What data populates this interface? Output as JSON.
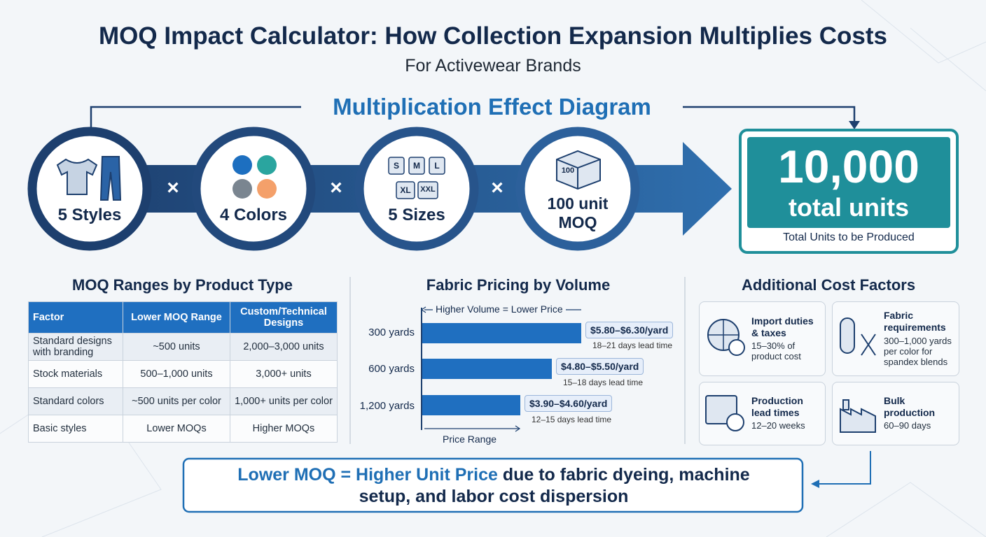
{
  "header": {
    "title": "MOQ Impact Calculator: How Collection Expansion Multiplies Costs",
    "subtitle": "For Activewear Brands"
  },
  "diagram": {
    "title": "Multiplication Effect Diagram",
    "operator": "×",
    "factors": [
      {
        "label": "5 Styles"
      },
      {
        "label": "4 Colors"
      },
      {
        "label": "5 Sizes",
        "size_tags": [
          "S",
          "M",
          "L",
          "XL",
          "XXL"
        ]
      },
      {
        "label": "100 unit MOQ",
        "box_label": "100"
      }
    ],
    "result": {
      "value": "10,000",
      "unit": "total units",
      "caption": "Total Units to be Produced"
    }
  },
  "moq_table": {
    "title": "MOQ Ranges by Product Type",
    "header": [
      "Factor",
      "Lower MOQ Range",
      "Custom/Technical Designs"
    ],
    "rows": [
      [
        "Standard designs with branding",
        "~500 units",
        "2,000–3,000 units"
      ],
      [
        "Stock materials",
        "500–1,000 units",
        "3,000+ units"
      ],
      [
        "Standard colors",
        "~500 units per color",
        "1,000+ units per color"
      ],
      [
        "Basic styles",
        "Lower MOQs",
        "Higher MOQs"
      ]
    ]
  },
  "fabric_pricing": {
    "title": "Fabric Pricing by Volume",
    "trend_label": "Higher Volume = Lower Price",
    "axis_label": "Price Range",
    "rows": [
      {
        "volume": "300 yards",
        "price": "$5.80–$6.30/yard",
        "lead_time": "18–21 days lead time"
      },
      {
        "volume": "600 yards",
        "price": "$4.80–$5.50/yard",
        "lead_time": "15–18 days lead time"
      },
      {
        "volume": "1,200 yards",
        "price": "$3.90–$4.60/yard",
        "lead_time": "12–15 days lead time"
      }
    ]
  },
  "cost_factors": {
    "title": "Additional Cost Factors",
    "items": [
      {
        "title": "Import duties & taxes",
        "detail": "15–30% of product cost"
      },
      {
        "title": "Fabric requirements",
        "detail": "300–1,000 yards per color for spandex blends"
      },
      {
        "title": "Production lead times",
        "detail": "12–20 weeks"
      },
      {
        "title": "Bulk production",
        "detail": "60–90 days"
      }
    ]
  },
  "footer": {
    "highlight": "Lower MOQ = Higher Unit Price",
    "text": "due to fabric dyeing, machine setup, and labor cost dispersion"
  }
}
